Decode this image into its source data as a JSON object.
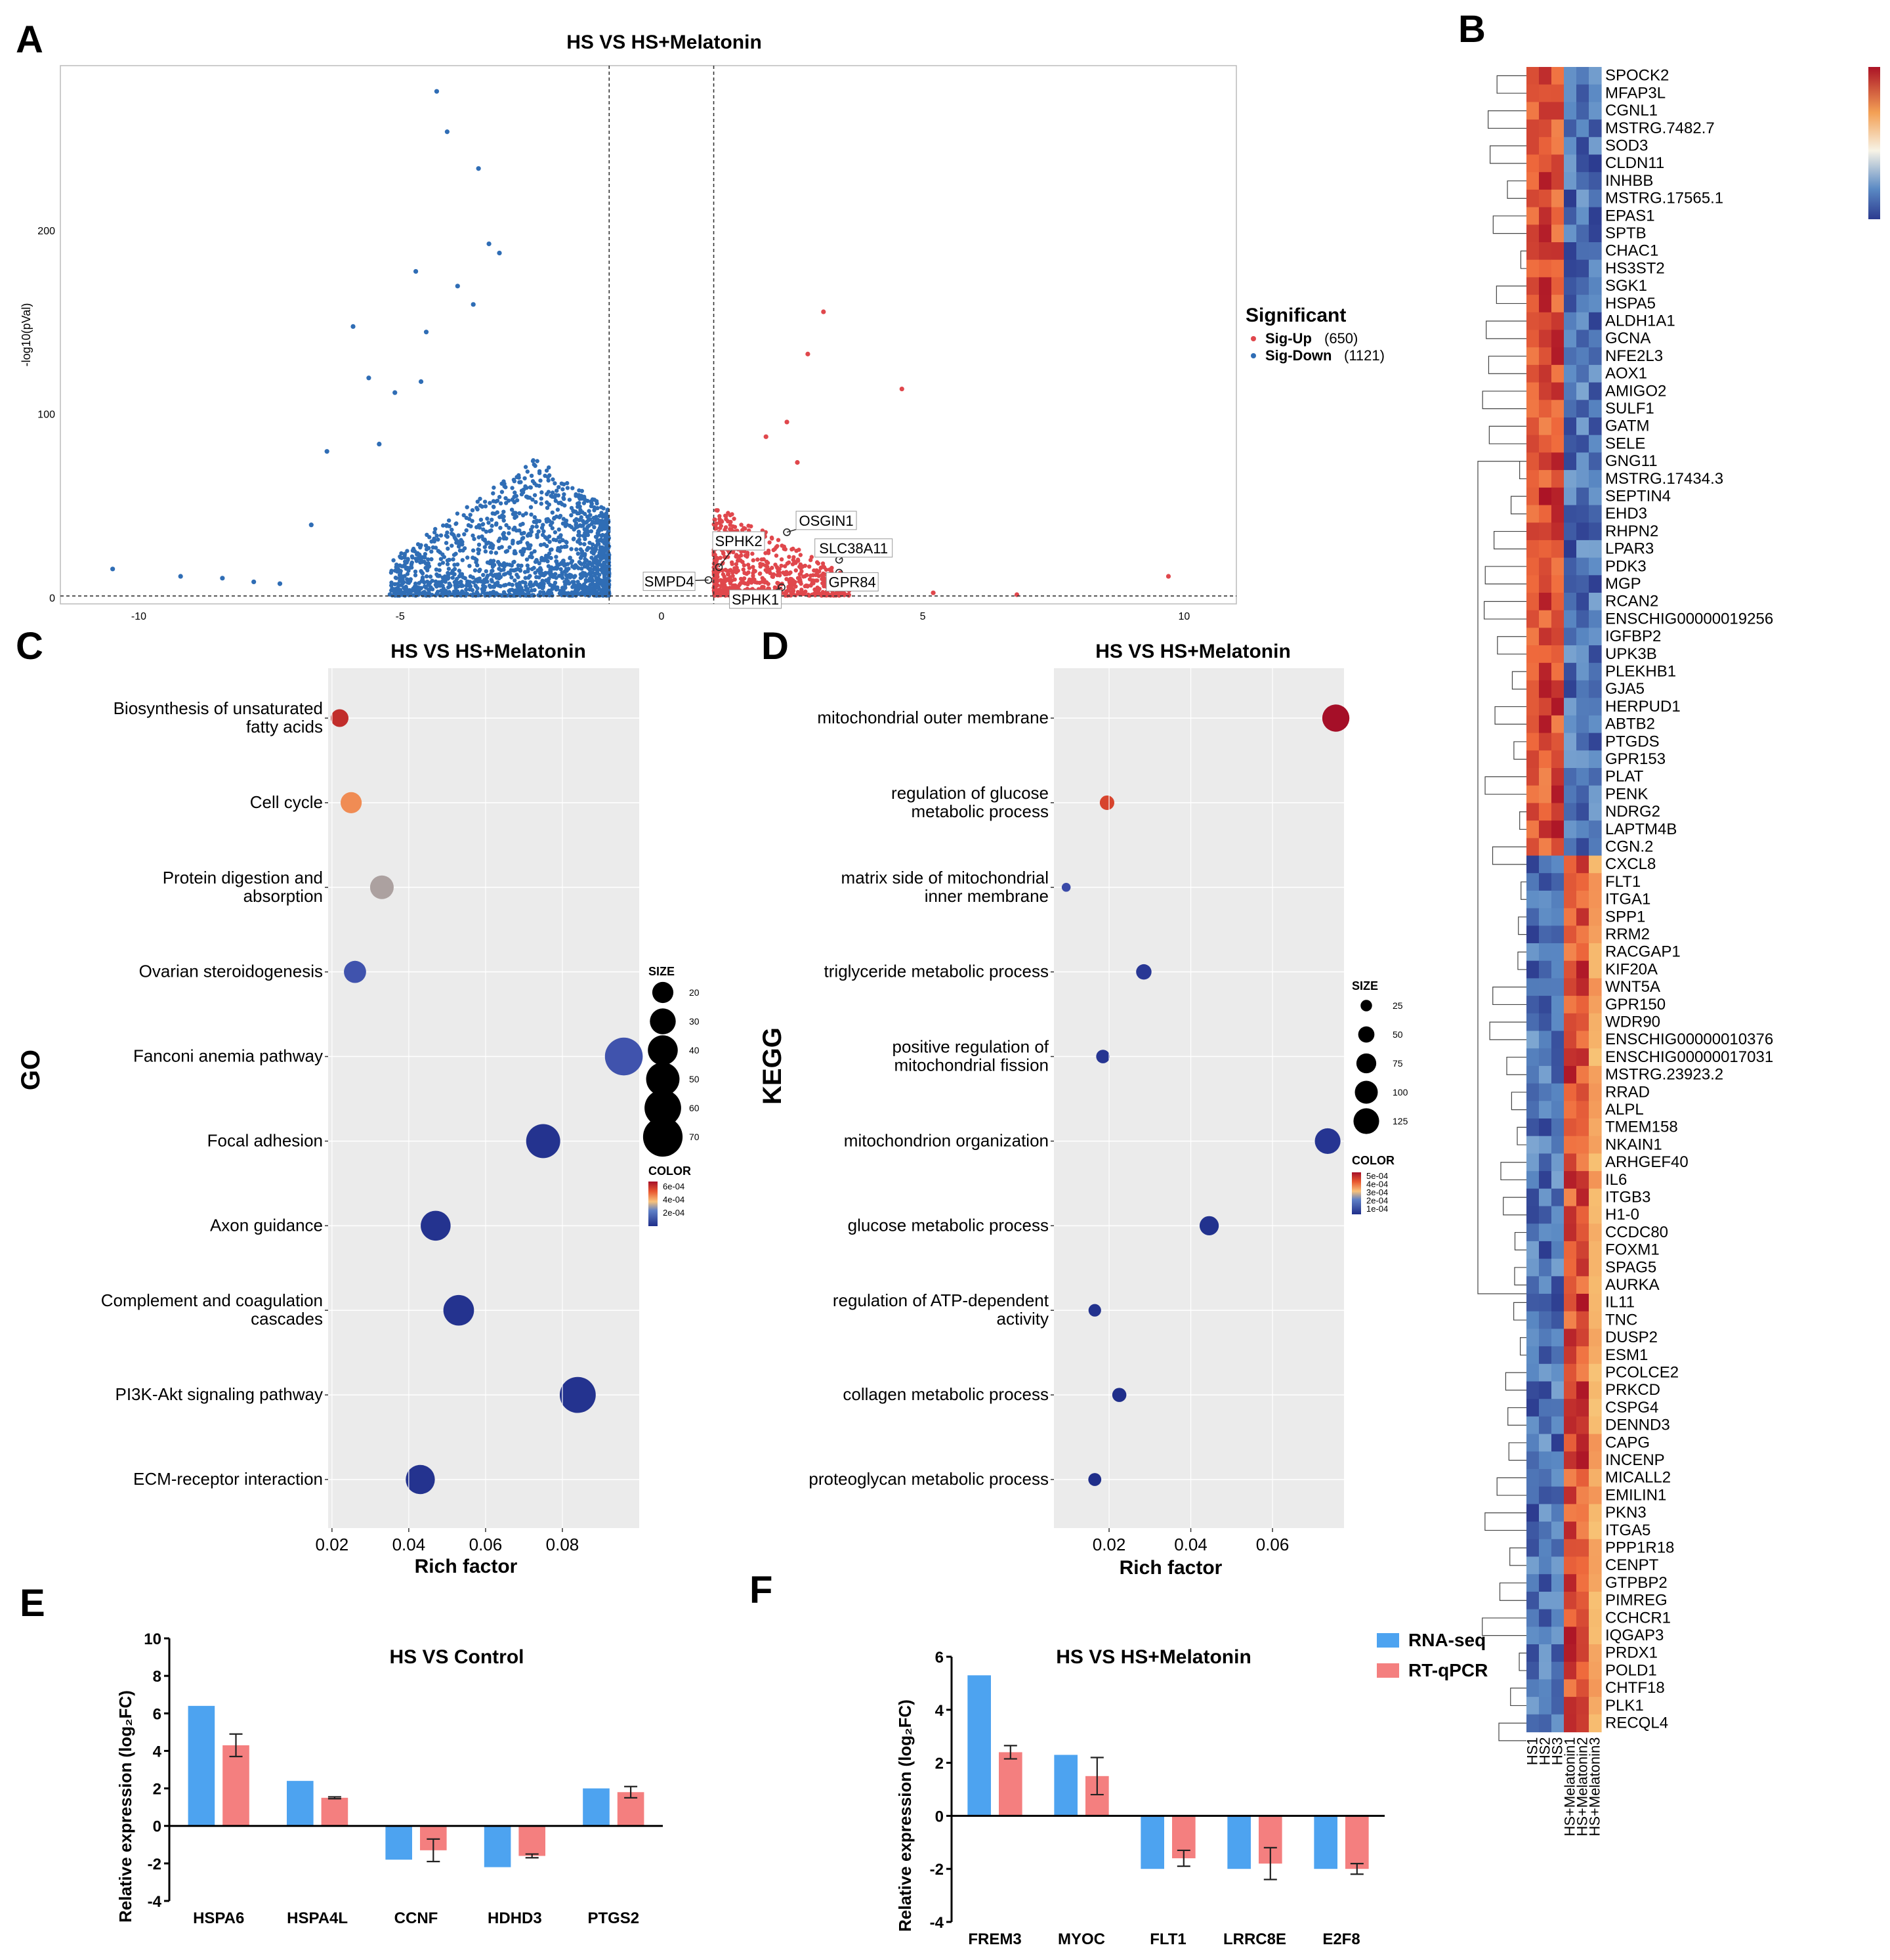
{
  "panel_labels": {
    "a": "A",
    "b": "B",
    "c": "C",
    "d": "D",
    "e": "E",
    "f": "F"
  },
  "colors": {
    "up": "#e0474c",
    "down": "#2f6db5",
    "rna": "#4da3f0",
    "qpcr": "#f47f7f",
    "grid_bg": "#ebebeb"
  },
  "chart_data": [
    {
      "id": "volcano",
      "type": "scatter",
      "title": "HS  VS HS+Melatonin",
      "xlabel": "",
      "ylabel": "-log10(pVal)",
      "xlim": [
        -11.5,
        11
      ],
      "ylim": [
        -3,
        290
      ],
      "xticks": [
        -10,
        -5,
        0,
        5,
        10
      ],
      "yticks": [
        0,
        100,
        200
      ],
      "thresholds": {
        "x": [
          -1,
          1
        ],
        "y": 1.3
      },
      "legend": {
        "title": "Significant",
        "up_label": "Sig-Up",
        "up_count": "(650)",
        "down_label": "Sig-Down",
        "down_count": "(1121)",
        "position": "right"
      },
      "labeled_points": [
        {
          "gene": "OSGIN1",
          "x": 2.4,
          "y": 36
        },
        {
          "gene": "SPHK2",
          "x": 1.1,
          "y": 17
        },
        {
          "gene": "SLC38A11",
          "x": 3.4,
          "y": 21
        },
        {
          "gene": "SMPD4",
          "x": 0.9,
          "y": 10
        },
        {
          "gene": "GPR84",
          "x": 3.4,
          "y": 14
        },
        {
          "gene": "SPHK1",
          "x": 2.3,
          "y": 6
        }
      ],
      "highlight_points": [
        {
          "x": -4.3,
          "y": 276
        },
        {
          "x": -4.1,
          "y": 254
        },
        {
          "x": -3.5,
          "y": 234
        },
        {
          "x": -3.3,
          "y": 193
        },
        {
          "x": -3.1,
          "y": 188
        },
        {
          "x": -4.7,
          "y": 178
        },
        {
          "x": -3.9,
          "y": 170
        },
        {
          "x": -3.6,
          "y": 160
        },
        {
          "x": -5.9,
          "y": 148
        },
        {
          "x": -4.5,
          "y": 145
        },
        {
          "x": -5.6,
          "y": 120
        },
        {
          "x": -5.1,
          "y": 112
        },
        {
          "x": -4.6,
          "y": 118
        },
        {
          "x": -6.4,
          "y": 80
        },
        {
          "x": -5.4,
          "y": 84
        },
        {
          "x": -6.7,
          "y": 40
        },
        {
          "x": -10.5,
          "y": 16
        },
        {
          "x": -9.2,
          "y": 12
        },
        {
          "x": -8.4,
          "y": 11
        },
        {
          "x": -7.8,
          "y": 9
        },
        {
          "x": -7.3,
          "y": 8
        },
        {
          "x": 3.1,
          "y": 156
        },
        {
          "x": 2.8,
          "y": 133
        },
        {
          "x": 4.6,
          "y": 114
        },
        {
          "x": 2.4,
          "y": 96
        },
        {
          "x": 2.0,
          "y": 88
        },
        {
          "x": 2.6,
          "y": 74
        },
        {
          "x": 9.7,
          "y": 12
        },
        {
          "x": 6.8,
          "y": 2
        },
        {
          "x": 5.2,
          "y": 3
        }
      ]
    },
    {
      "id": "go_dot",
      "type": "scatter",
      "title": "HS  VS HS+Melatonin",
      "xlabel": "Rich factor",
      "ylabel": "GO",
      "xlim": [
        0.019,
        0.1
      ],
      "xticks": [
        0.02,
        0.04,
        0.06,
        0.08
      ],
      "xtick_labels": [
        "0.02",
        "0.04",
        "0.06",
        "0.08"
      ],
      "categories": [
        [
          "Biosynthesis of unsaturated",
          "fatty acids"
        ],
        [
          "Cell cycle"
        ],
        [
          "Protein digestion and",
          "absorption"
        ],
        [
          "Ovarian steroidogenesis"
        ],
        [
          "Fanconi anemia pathway"
        ],
        [
          "Focal adhesion"
        ],
        [
          "Axon guidance"
        ],
        [
          "Complement and coagulation",
          "cascades"
        ],
        [
          "PI3K-Akt signaling pathway"
        ],
        [
          "ECM-receptor interaction"
        ]
      ],
      "x": [
        0.022,
        0.025,
        0.033,
        0.026,
        0.096,
        0.075,
        0.047,
        0.053,
        0.084,
        0.043
      ],
      "size": [
        14,
        20,
        25,
        22,
        64,
        52,
        40,
        42,
        58,
        38
      ],
      "color_value": [
        0.00065,
        0.00052,
        0.0004,
        0.00024,
        0.00024,
        0.00012,
        0.00012,
        0.00012,
        0.00012,
        0.00012
      ],
      "size_legend": {
        "title": "SIZE",
        "values": [
          20,
          30,
          40,
          50,
          60,
          70
        ]
      },
      "color_legend": {
        "title": "COLOR",
        "labels": [
          "6e-04",
          "4e-04",
          "2e-04"
        ],
        "min": 0.0001,
        "max": 0.0007
      }
    },
    {
      "id": "kegg_dot",
      "type": "scatter",
      "title": "HS  VS HS+Melatonin",
      "xlabel": "Rich factor",
      "ylabel": "KEGG",
      "xlim": [
        0.0065,
        0.0775
      ],
      "xticks": [
        0.02,
        0.04,
        0.06
      ],
      "xtick_labels": [
        "0.02",
        "0.04",
        "0.06"
      ],
      "categories": [
        [
          "mitochondrial outer membrane"
        ],
        [
          "regulation of glucose",
          "metabolic process"
        ],
        [
          "matrix side of mitochondrial",
          "inner membrane"
        ],
        [
          "triglyceride metabolic process"
        ],
        [
          "positive regulation of",
          "mitochondrial fission"
        ],
        [
          "mitochondrion organization"
        ],
        [
          "glucose metabolic process"
        ],
        [
          "regulation of ATP-dependent",
          "activity"
        ],
        [
          "collagen metabolic process"
        ],
        [
          "proteoglycan metabolic process"
        ]
      ],
      "x": [
        0.0755,
        0.0195,
        0.0095,
        0.0285,
        0.0185,
        0.0735,
        0.0445,
        0.0165,
        0.0225,
        0.0165
      ],
      "size": [
        140,
        40,
        15,
        45,
        35,
        125,
        70,
        30,
        38,
        32
      ],
      "color_value": [
        0.00052,
        0.00044,
        0.00018,
        0.00013,
        0.00012,
        0.00012,
        0.00011,
        0.00011,
        0.0001,
        0.0001
      ],
      "size_legend": {
        "title": "SIZE",
        "values": [
          25,
          50,
          75,
          100,
          125
        ]
      },
      "color_legend": {
        "title": "COLOR",
        "labels": [
          "5e-04",
          "4e-04",
          "3e-04",
          "2e-04",
          "1e-04"
        ],
        "min": 0.0001,
        "max": 0.0005
      }
    },
    {
      "id": "heatmap",
      "type": "heatmap",
      "columns": [
        "HS1",
        "HS2",
        "HS3",
        "HS+Melatonin1",
        "HS+Melatonin2",
        "HS+Melatonin3"
      ],
      "genes_cluster1": [
        "SPOCK2",
        "MFAP3L",
        "CGNL1",
        "MSTRG.7482.7",
        "SOD3",
        "CLDN11",
        "INHBB",
        "MSTRG.17565.1",
        "EPAS1",
        "SPTB",
        "CHAC1",
        "HS3ST2",
        "SGK1",
        "HSPA5",
        "ALDH1A1",
        "GCNA",
        "NFE2L3",
        "AOX1",
        "AMIGO2",
        "SULF1",
        "GATM",
        "SELE",
        "GNG11",
        "MSTRG.17434.3",
        "SEPTIN4",
        "EHD3",
        "RHPN2",
        "LPAR3",
        "PDK3",
        "MGP",
        "RCAN2",
        "ENSCHIG00000019256",
        "IGFBP2",
        "UPK3B",
        "PLEKHB1",
        "GJA5",
        "HERPUD1",
        "ABTB2",
        "PTGDS",
        "GPR153",
        "PLAT",
        "PENK",
        "NDRG2",
        "LAPTM4B",
        "CGN.2"
      ],
      "genes_cluster2": [
        "CXCL8",
        "FLT1",
        "ITGA1",
        "SPP1",
        "RRM2",
        "RACGAP1",
        "KIF20A",
        "WNT5A",
        "GPR150",
        "WDR90",
        "ENSCHIG00000010376",
        "ENSCHIG00000017031",
        "MSTRG.23923.2",
        "RRAD",
        "ALPL",
        "TMEM158",
        "NKAIN1",
        "ARHGEF40",
        "IL6",
        "ITGB3",
        "H1-0",
        "CCDC80",
        "FOXM1",
        "SPAG5",
        "AURKA",
        "IL11",
        "TNC",
        "DUSP2",
        "ESM1",
        "PCOLCE2",
        "PRKCD",
        "CSPG4",
        "DENND3",
        "CAPG",
        "INCENP",
        "MICALL2",
        "EMILIN1",
        "PKN3",
        "ITGA5",
        "PPP1R18",
        "CENPT",
        "GTPBP2",
        "PIMREG",
        "CCHCR1",
        "IQGAP3",
        "PRDX1",
        "POLD1",
        "CHTF18",
        "PLK1",
        "RECQL4"
      ],
      "color_scale": [
        "#2c3b8f",
        "#5b8ac4",
        "#a8c9e2",
        "#f7f3e6",
        "#f7c173",
        "#ef6a3c",
        "#ab1326"
      ]
    },
    {
      "id": "bar_e",
      "type": "bar",
      "title": "HS VS Control",
      "xlabel": "",
      "ylabel": "Relative expression (log₂FC)",
      "ylim": [
        -4,
        10
      ],
      "yticks": [
        -4,
        -2,
        0,
        2,
        4,
        6,
        8,
        10
      ],
      "categories": [
        "HSPA6",
        "HSPA4L",
        "CCNF",
        "HDHD3",
        "PTGS2"
      ],
      "series": [
        {
          "name": "RNA-seq",
          "values": [
            6.4,
            2.4,
            -1.8,
            -2.2,
            2.0
          ],
          "errors": [
            0,
            0,
            0,
            0,
            0
          ]
        },
        {
          "name": "RT-qPCR",
          "values": [
            4.3,
            1.5,
            -1.3,
            -1.6,
            1.8
          ],
          "errors": [
            0.6,
            0.05,
            0.6,
            0.1,
            0.3
          ]
        }
      ]
    },
    {
      "id": "bar_f",
      "type": "bar",
      "title": "HS  VS HS+Melatonin",
      "xlabel": "",
      "ylabel": "Relative expression (log₂FC)",
      "ylim": [
        -4,
        6
      ],
      "yticks": [
        -4,
        -2,
        0,
        2,
        4,
        6
      ],
      "categories": [
        "FREM3",
        "MYOC",
        "FLT1",
        "LRRC8E",
        "E2F8"
      ],
      "series": [
        {
          "name": "RNA-seq",
          "values": [
            5.3,
            2.3,
            -2.0,
            -2.0,
            -2.0
          ],
          "errors": [
            0,
            0,
            0,
            0,
            0
          ]
        },
        {
          "name": "RT-qPCR",
          "values": [
            2.4,
            1.5,
            -1.6,
            -1.8,
            -2.0
          ],
          "errors": [
            0.25,
            0.7,
            0.3,
            0.6,
            0.2
          ]
        }
      ],
      "legend_position": "top-right"
    }
  ]
}
